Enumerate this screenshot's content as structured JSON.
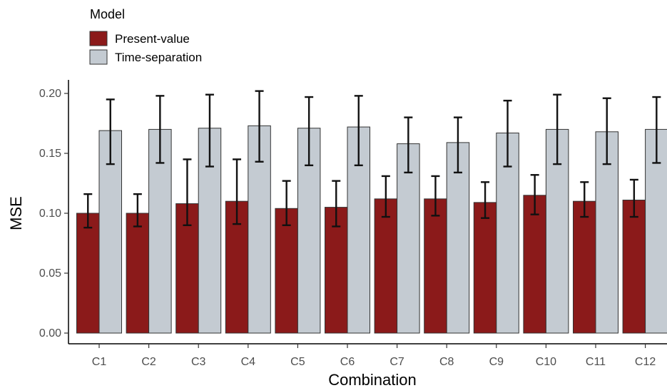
{
  "chart_data": {
    "type": "bar",
    "xlabel": "Combination",
    "ylabel": "MSE",
    "ylim": [
      0,
      0.2
    ],
    "yticks": [
      0.0,
      0.05,
      0.1,
      0.15,
      0.2
    ],
    "ytick_labels": [
      "0.00",
      "0.05",
      "0.10",
      "0.15",
      "0.20"
    ],
    "categories": [
      "C1",
      "C2",
      "C3",
      "C4",
      "C5",
      "C6",
      "C7",
      "C8",
      "C9",
      "C10",
      "C11",
      "C12"
    ],
    "legend": {
      "title": "Model",
      "placement": "top-left"
    },
    "grid": false,
    "series": [
      {
        "name": "Present-value",
        "color": "#8b1a1a",
        "values": [
          0.1,
          0.1,
          0.108,
          0.11,
          0.104,
          0.105,
          0.112,
          0.112,
          0.109,
          0.115,
          0.11,
          0.111
        ],
        "err_low": [
          0.088,
          0.089,
          0.09,
          0.091,
          0.09,
          0.089,
          0.097,
          0.098,
          0.096,
          0.099,
          0.097,
          0.097
        ],
        "err_high": [
          0.116,
          0.116,
          0.145,
          0.145,
          0.127,
          0.127,
          0.131,
          0.131,
          0.126,
          0.132,
          0.126,
          0.128
        ]
      },
      {
        "name": "Time-separation",
        "color": "#c4cbd2",
        "values": [
          0.169,
          0.17,
          0.171,
          0.173,
          0.171,
          0.172,
          0.158,
          0.159,
          0.167,
          0.17,
          0.168,
          0.17
        ],
        "err_low": [
          0.141,
          0.142,
          0.139,
          0.143,
          0.14,
          0.14,
          0.134,
          0.134,
          0.139,
          0.141,
          0.141,
          0.142
        ],
        "err_high": [
          0.195,
          0.198,
          0.199,
          0.202,
          0.197,
          0.198,
          0.18,
          0.18,
          0.194,
          0.199,
          0.196,
          0.197
        ]
      }
    ]
  }
}
